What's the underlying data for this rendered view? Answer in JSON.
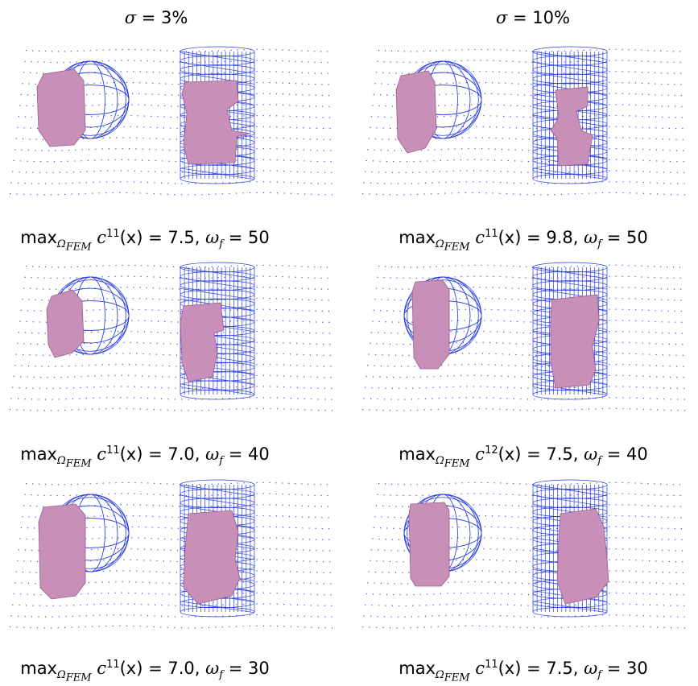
{
  "columns": [
    {
      "sigma_symbol": "σ",
      "sigma_value": "= 3%"
    },
    {
      "sigma_symbol": "σ",
      "sigma_value": "= 10%"
    }
  ],
  "panels": [
    {
      "max_label": "max",
      "omega_sub": "Ω",
      "fem_sub": "FEM",
      "coef": "c",
      "coef_sup": "11",
      "arg": "(x) = 7.5,",
      "omega": "ω",
      "omega_f_sub": "f",
      "omega_value": "= 50"
    },
    {
      "max_label": "max",
      "omega_sub": "Ω",
      "fem_sub": "FEM",
      "coef": "c",
      "coef_sup": "11",
      "arg": "(x) = 9.8,",
      "omega": "ω",
      "omega_f_sub": "f",
      "omega_value": "= 50"
    },
    {
      "max_label": "max",
      "omega_sub": "Ω",
      "fem_sub": "FEM",
      "coef": "c",
      "coef_sup": "11",
      "arg": "(x) = 7.0,",
      "omega": "ω",
      "omega_f_sub": "f",
      "omega_value": "= 40"
    },
    {
      "max_label": "max",
      "omega_sub": "Ω",
      "fem_sub": "FEM",
      "coef": "c",
      "coef_sup": "12",
      "arg": "(x) = 7.5,",
      "omega": "ω",
      "omega_f_sub": "f",
      "omega_value": "= 40"
    },
    {
      "max_label": "max",
      "omega_sub": "Ω",
      "fem_sub": "FEM",
      "coef": "c",
      "coef_sup": "11",
      "arg": "(x) = 7.0,",
      "omega": "ω",
      "omega_f_sub": "f",
      "omega_value": "= 30"
    },
    {
      "max_label": "max",
      "omega_sub": "Ω",
      "fem_sub": "FEM",
      "coef": "c",
      "coef_sup": "11",
      "arg": "(x) = 7.5,",
      "omega": "ω",
      "omega_f_sub": "f",
      "omega_value": "= 30"
    }
  ],
  "colors": {
    "wireframe": "#2a3ee0",
    "mesh_dots": "#3f4fd8",
    "reconstruction": "#c88fb8",
    "reconstruction_edge": "#9a5e8a"
  }
}
